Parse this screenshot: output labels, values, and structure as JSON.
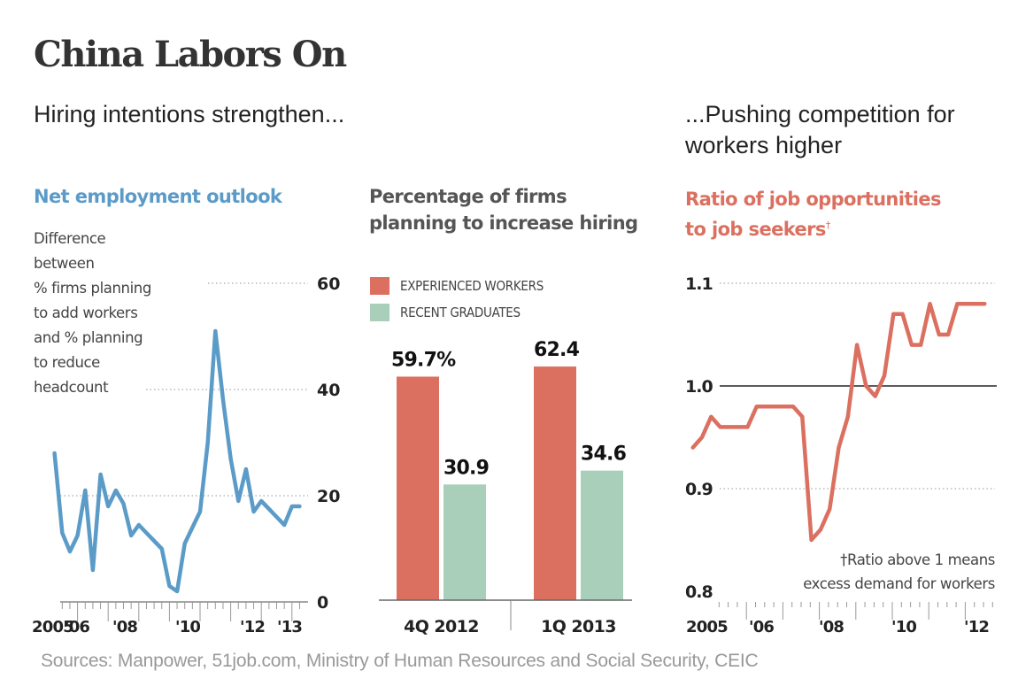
{
  "header": {
    "title": "China Labors On",
    "dek_left": "Hiring intentions strengthen...",
    "dek_right_line1": "...Pushing competition for",
    "dek_right_line2": "workers higher"
  },
  "source": "Sources: Manpower, 51job.com, Ministry of Human Resources and Social Security, CEIC",
  "colors": {
    "blue": "#5b9bc8",
    "red": "#db7060",
    "green": "#a9cfbb",
    "axis": "#555555"
  },
  "chart_data": [
    {
      "type": "line",
      "title": "Net employment outlook",
      "note_lines": [
        "Difference",
        "between",
        "% firms planning",
        "to add workers",
        "and % planning",
        "to reduce",
        "headcount"
      ],
      "ylim": [
        0,
        60
      ],
      "yticks": [
        0,
        20,
        40,
        60
      ],
      "ytick_labels": [
        "0",
        "20",
        "40",
        "60"
      ],
      "xlim": [
        2005.0,
        2013.5
      ],
      "xticks": [
        2005,
        2006,
        2008,
        2010,
        2012,
        2013
      ],
      "xtick_labels": [
        "2005",
        "'06",
        "'08",
        "'10",
        "'12",
        "'13"
      ],
      "grid": "dotted horizontal",
      "series": [
        {
          "name": "Net employment outlook",
          "x": [
            2005.25,
            2005.5,
            2005.75,
            2006.0,
            2006.25,
            2006.5,
            2006.75,
            2007.0,
            2007.25,
            2007.5,
            2007.75,
            2008.0,
            2008.25,
            2008.5,
            2008.75,
            2009.0,
            2009.25,
            2009.5,
            2009.75,
            2010.0,
            2010.25,
            2010.5,
            2010.75,
            2011.0,
            2011.25,
            2011.5,
            2011.75,
            2012.0,
            2012.25,
            2012.5,
            2012.75,
            2013.0,
            2013.25
          ],
          "values": [
            28,
            13,
            9.5,
            12.5,
            21,
            6,
            24,
            18,
            21,
            18.5,
            12.5,
            14.5,
            13,
            11.5,
            10,
            3,
            2,
            11,
            14,
            17,
            30,
            51,
            38,
            27,
            19,
            25,
            17,
            19,
            17.5,
            16,
            14.5,
            18,
            18
          ]
        }
      ]
    },
    {
      "type": "bar",
      "title_line1": "Percentage of firms",
      "title_line2": "planning to increase hiring",
      "categories": [
        "4Q 2012",
        "1Q 2013"
      ],
      "series": [
        {
          "name": "EXPERIENCED WORKERS",
          "values": [
            59.7,
            62.4
          ],
          "labels": [
            "59.7%",
            "62.4"
          ]
        },
        {
          "name": "RECENT GRADUATES",
          "values": [
            30.9,
            34.6
          ],
          "labels": [
            "30.9",
            "34.6"
          ]
        }
      ],
      "ylim": [
        0,
        70
      ],
      "legend": "top-left"
    },
    {
      "type": "line",
      "title_line1": "Ratio of job opportunities",
      "title_line2": "to job seekers",
      "title_mark": "†",
      "footnote_line1": "†Ratio above 1 means",
      "footnote_line2": "excess demand for workers",
      "ylim": [
        0.8,
        1.1
      ],
      "yticks": [
        0.8,
        0.9,
        1.0,
        1.1
      ],
      "ytick_labels": [
        "0.8",
        "0.9",
        "1.0",
        "1.1"
      ],
      "reference_line": 1.0,
      "xlim": [
        2005.0,
        2012.9
      ],
      "xticks": [
        2005,
        2006,
        2008,
        2010,
        2012
      ],
      "xtick_labels": [
        "2005",
        "'06",
        "'08",
        "'10",
        "'12"
      ],
      "grid": "dotted horizontal",
      "series": [
        {
          "name": "Ratio",
          "x": [
            2004.75,
            2005.0,
            2005.25,
            2005.5,
            2005.75,
            2006.0,
            2006.25,
            2006.5,
            2006.75,
            2007.0,
            2007.25,
            2007.5,
            2007.75,
            2008.0,
            2008.25,
            2008.5,
            2008.75,
            2009.0,
            2009.25,
            2009.5,
            2009.75,
            2010.0,
            2010.25,
            2010.5,
            2010.75,
            2011.0,
            2011.25,
            2011.5,
            2011.75,
            2012.0,
            2012.25,
            2012.5,
            2012.75
          ],
          "values": [
            0.94,
            0.95,
            0.97,
            0.96,
            0.96,
            0.96,
            0.96,
            0.98,
            0.98,
            0.98,
            0.98,
            0.98,
            0.97,
            0.85,
            0.86,
            0.88,
            0.94,
            0.97,
            1.04,
            1.0,
            0.99,
            1.01,
            1.07,
            1.07,
            1.04,
            1.04,
            1.08,
            1.05,
            1.05,
            1.08,
            1.08,
            1.08,
            1.08
          ]
        }
      ]
    }
  ]
}
